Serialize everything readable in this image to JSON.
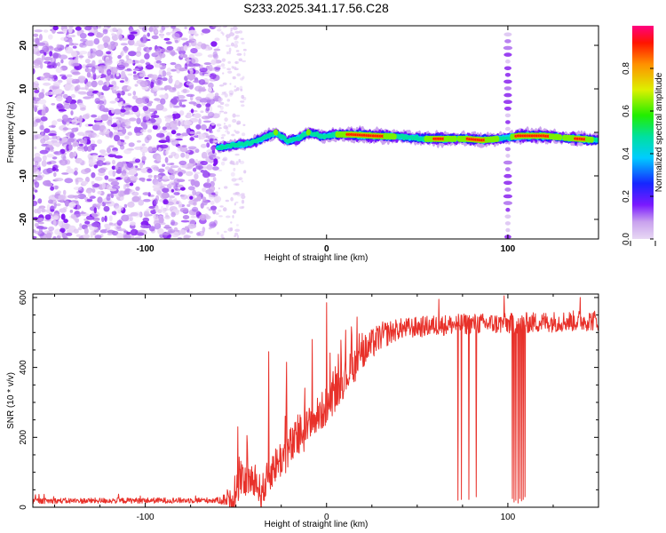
{
  "title": "S233.2025.341.17.56.C28",
  "colors": {
    "series": "#e8312a",
    "axis": "#000000",
    "grid": "#999999"
  },
  "chart_data": [
    {
      "type": "heatmap",
      "name": "spectrogram",
      "xlabel": "Height of straight line (km)",
      "ylabel": "Frequency (Hz)",
      "xlim": [
        -162,
        150
      ],
      "ylim": [
        -24.5,
        24.5
      ],
      "xticks": [
        {
          "v": -100,
          "label": "-100"
        },
        {
          "v": 0,
          "label": "0"
        },
        {
          "v": 100,
          "label": "100"
        }
      ],
      "yticks": [
        {
          "v": 20,
          "label": "20"
        },
        {
          "v": 10,
          "label": "10"
        },
        {
          "v": 0,
          "label": "0"
        },
        {
          "v": -10,
          "label": "-10"
        },
        {
          "v": -20,
          "label": "-20"
        }
      ],
      "noise_region": [
        -162,
        -60
      ],
      "ridge": [
        {
          "x": -60,
          "y": -3.5,
          "a": 0.3
        },
        {
          "x": -52,
          "y": -3,
          "a": 0.4
        },
        {
          "x": -42,
          "y": -2.5,
          "a": 0.55
        },
        {
          "x": -36,
          "y": -1.5,
          "a": 0.5
        },
        {
          "x": -28,
          "y": 0,
          "a": 0.6
        },
        {
          "x": -22,
          "y": -2,
          "a": 0.5
        },
        {
          "x": -16,
          "y": -1.5,
          "a": 0.55
        },
        {
          "x": -10,
          "y": 0,
          "a": 0.6
        },
        {
          "x": -2,
          "y": -1,
          "a": 0.55
        },
        {
          "x": 6,
          "y": -0.5,
          "a": 0.6
        },
        {
          "x": 14,
          "y": -0.5,
          "a": 0.95
        },
        {
          "x": 26,
          "y": -0.8,
          "a": 0.95
        },
        {
          "x": 40,
          "y": -1,
          "a": 0.55
        },
        {
          "x": 55,
          "y": -1.5,
          "a": 0.6
        },
        {
          "x": 62,
          "y": -1.5,
          "a": 0.95
        },
        {
          "x": 72,
          "y": -1.5,
          "a": 0.55
        },
        {
          "x": 78,
          "y": -1.5,
          "a": 0.85
        },
        {
          "x": 86,
          "y": -1.8,
          "a": 0.85
        },
        {
          "x": 94,
          "y": -1.5,
          "a": 0.6
        },
        {
          "x": 100,
          "y": -1.2,
          "a": 0.4
        },
        {
          "x": 106,
          "y": -0.8,
          "a": 0.95
        },
        {
          "x": 120,
          "y": -0.8,
          "a": 0.95
        },
        {
          "x": 130,
          "y": -1.2,
          "a": 0.55
        },
        {
          "x": 140,
          "y": -1.5,
          "a": 0.95
        },
        {
          "x": 150,
          "y": -1.8,
          "a": 0.4
        }
      ],
      "column_feature_x": 100,
      "colorbar": {
        "label": "Normalized spectral amplitude",
        "ticks": [
          {
            "v": 0.0,
            "label": "0.0"
          },
          {
            "v": 0.2,
            "label": "0.2"
          },
          {
            "v": 0.4,
            "label": "0.4"
          },
          {
            "v": 0.6,
            "label": "0.6"
          },
          {
            "v": 0.8,
            "label": "0.8"
          }
        ]
      }
    },
    {
      "type": "line",
      "name": "snr",
      "xlabel": "Height of straight line (km)",
      "ylabel": "SNR (10 * v/v)",
      "xlim": [
        -162,
        150
      ],
      "ylim": [
        0,
        610
      ],
      "xticks": [
        {
          "v": -100,
          "label": "-100"
        },
        {
          "v": 0,
          "label": "0"
        },
        {
          "v": 100,
          "label": "100"
        }
      ],
      "yticks": [
        {
          "v": 0,
          "label": "0"
        },
        {
          "v": 200,
          "label": "200"
        },
        {
          "v": 400,
          "label": "400"
        },
        {
          "v": 600,
          "label": "600"
        }
      ],
      "trend": [
        {
          "x": -162,
          "y": 18
        },
        {
          "x": -60,
          "y": 20
        },
        {
          "x": -50,
          "y": 25
        },
        {
          "x": -48,
          "y": 70
        },
        {
          "x": -40,
          "y": 80
        },
        {
          "x": -36,
          "y": 40
        },
        {
          "x": -30,
          "y": 110
        },
        {
          "x": -20,
          "y": 170
        },
        {
          "x": -10,
          "y": 230
        },
        {
          "x": 0,
          "y": 290
        },
        {
          "x": 10,
          "y": 370
        },
        {
          "x": 20,
          "y": 440
        },
        {
          "x": 30,
          "y": 490
        },
        {
          "x": 40,
          "y": 510
        },
        {
          "x": 60,
          "y": 520
        },
        {
          "x": 80,
          "y": 525
        },
        {
          "x": 100,
          "y": 525
        },
        {
          "x": 120,
          "y": 530
        },
        {
          "x": 150,
          "y": 535
        }
      ],
      "noise_amp": [
        {
          "x": -162,
          "y": 8
        },
        {
          "x": -60,
          "y": 8
        },
        {
          "x": -48,
          "y": 40
        },
        {
          "x": -20,
          "y": 60
        },
        {
          "x": 20,
          "y": 50
        },
        {
          "x": 40,
          "y": 30
        },
        {
          "x": 150,
          "y": 30
        }
      ],
      "spikes": [
        {
          "x": -49,
          "y": 230
        },
        {
          "x": -44,
          "y": 205
        },
        {
          "x": -32,
          "y": 445
        },
        {
          "x": -22,
          "y": 415
        },
        {
          "x": -8,
          "y": 480
        },
        {
          "x": 0,
          "y": 585
        },
        {
          "x": 62,
          "y": 595
        },
        {
          "x": 98,
          "y": 605
        },
        {
          "x": 140,
          "y": 600
        }
      ],
      "dropouts": [
        {
          "x": 72.5,
          "y": 20
        },
        {
          "x": 74.5,
          "y": 22
        },
        {
          "x": 78.5,
          "y": 22
        },
        {
          "x": 82.5,
          "y": 30
        },
        {
          "x": 102.5,
          "y": 25
        },
        {
          "x": 103.5,
          "y": 15
        },
        {
          "x": 104.5,
          "y": 20
        },
        {
          "x": 105.5,
          "y": 12
        },
        {
          "x": 106.5,
          "y": 25
        },
        {
          "x": 107.5,
          "y": 18
        },
        {
          "x": 108.5,
          "y": 22
        },
        {
          "x": 109.5,
          "y": 30
        }
      ]
    }
  ]
}
